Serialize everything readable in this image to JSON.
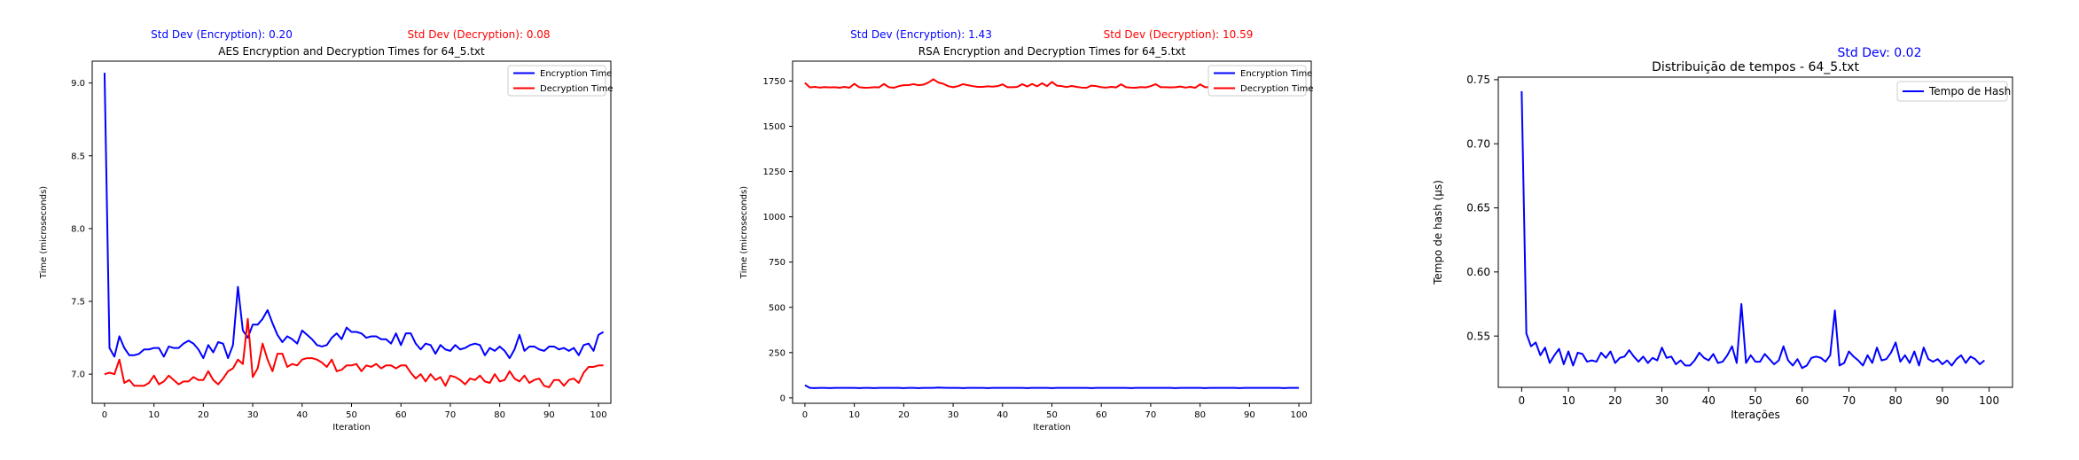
{
  "colors": {
    "blue": "#0000ff",
    "red": "#ff0000",
    "axis": "#000000"
  },
  "chart_data": [
    {
      "type": "line",
      "title": "AES Encryption and Decryption Times for 64_5.txt",
      "xlabel": "Iteration",
      "ylabel": "Time (microseconds)",
      "xlim": [
        -2.5,
        102.5
      ],
      "ylim": [
        6.8,
        9.15
      ],
      "xticks": [
        0,
        10,
        20,
        30,
        40,
        50,
        60,
        70,
        80,
        90,
        100
      ],
      "yticks": [
        7.0,
        7.5,
        8.0,
        8.5,
        9.0
      ],
      "ytick_labels": [
        "7.0",
        "7.5",
        "8.0",
        "8.5",
        "9.0"
      ],
      "legend_position": "upper right",
      "annotations": [
        {
          "text": "Std Dev (Encryption): 0.20",
          "color": "blue"
        },
        {
          "text": "Std Dev (Decryption): 0.08",
          "color": "red"
        }
      ],
      "series": [
        {
          "name": "Encryption Time",
          "color": "blue",
          "values": [
            9.07,
            7.18,
            7.12,
            7.26,
            7.18,
            7.13,
            7.13,
            7.14,
            7.17,
            7.17,
            7.18,
            7.18,
            7.12,
            7.19,
            7.18,
            7.18,
            7.21,
            7.23,
            7.21,
            7.17,
            7.11,
            7.2,
            7.15,
            7.22,
            7.21,
            7.11,
            7.2,
            7.6,
            7.3,
            7.25,
            7.34,
            7.34,
            7.38,
            7.44,
            7.35,
            7.27,
            7.22,
            7.26,
            7.24,
            7.21,
            7.3,
            7.27,
            7.24,
            7.2,
            7.19,
            7.2,
            7.25,
            7.28,
            7.24,
            7.32,
            7.29,
            7.29,
            7.28,
            7.25,
            7.26,
            7.26,
            7.24,
            7.24,
            7.21,
            7.28,
            7.2,
            7.28,
            7.28,
            7.21,
            7.17,
            7.21,
            7.2,
            7.14,
            7.2,
            7.17,
            7.16,
            7.2,
            7.17,
            7.18,
            7.2,
            7.21,
            7.2,
            7.13,
            7.18,
            7.16,
            7.19,
            7.16,
            7.11,
            7.17,
            7.27,
            7.16,
            7.19,
            7.19,
            7.17,
            7.16,
            7.19,
            7.19,
            7.17,
            7.18,
            7.16,
            7.18,
            7.13,
            7.2,
            7.21,
            7.16,
            7.27,
            7.29
          ]
        },
        {
          "name": "Decryption Time",
          "color": "red",
          "values": [
            7.0,
            7.01,
            7.0,
            7.1,
            6.94,
            6.96,
            6.92,
            6.92,
            6.92,
            6.94,
            6.99,
            6.93,
            6.95,
            6.99,
            6.96,
            6.93,
            6.95,
            6.95,
            6.98,
            6.96,
            6.96,
            7.02,
            6.96,
            6.93,
            6.97,
            7.02,
            7.04,
            7.1,
            7.07,
            7.38,
            6.98,
            7.04,
            7.21,
            7.1,
            7.02,
            7.14,
            7.14,
            7.05,
            7.07,
            7.06,
            7.1,
            7.11,
            7.11,
            7.1,
            7.08,
            7.05,
            7.1,
            7.02,
            7.03,
            7.06,
            7.06,
            7.07,
            7.02,
            7.06,
            7.05,
            7.07,
            7.04,
            7.06,
            7.06,
            7.04,
            7.06,
            7.06,
            7.01,
            6.97,
            7.0,
            6.95,
            7.0,
            6.96,
            6.98,
            6.92,
            6.99,
            6.98,
            6.96,
            6.93,
            6.97,
            6.96,
            6.99,
            6.95,
            6.94,
            7.0,
            6.95,
            6.96,
            7.02,
            6.97,
            6.95,
            6.99,
            6.94,
            6.96,
            6.97,
            6.92,
            6.91,
            6.96,
            6.96,
            6.92,
            6.96,
            6.97,
            6.94,
            7.01,
            7.05,
            7.05,
            7.06,
            7.06
          ]
        }
      ]
    },
    {
      "type": "line",
      "title": "RSA Encryption and Decryption Times for 64_5.txt",
      "xlabel": "Iteration",
      "ylabel": "Time (microseconds)",
      "xlim": [
        -2.5,
        102.5
      ],
      "ylim": [
        -30,
        1860
      ],
      "xticks": [
        0,
        10,
        20,
        30,
        40,
        50,
        60,
        70,
        80,
        90,
        100
      ],
      "yticks": [
        0,
        250,
        500,
        750,
        1000,
        1250,
        1500,
        1750
      ],
      "ytick_labels": [
        "0",
        "250",
        "500",
        "750",
        "1000",
        "1250",
        "1500",
        "1750"
      ],
      "legend_position": "upper right",
      "annotations": [
        {
          "text": "Std Dev (Encryption): 1.43",
          "color": "blue"
        },
        {
          "text": "Std Dev (Decryption): 10.59",
          "color": "red"
        }
      ],
      "series": [
        {
          "name": "Encryption Time",
          "color": "blue",
          "values": [
            70,
            55,
            54,
            55,
            55,
            54,
            55,
            55,
            55,
            55,
            55,
            54,
            55,
            55,
            54,
            55,
            55,
            55,
            55,
            55,
            54,
            55,
            55,
            54,
            55,
            55,
            55,
            57,
            56,
            55,
            55,
            55,
            54,
            55,
            55,
            55,
            55,
            54,
            55,
            55,
            55,
            55,
            55,
            55,
            55,
            54,
            55,
            55,
            55,
            55,
            54,
            55,
            55,
            55,
            55,
            55,
            55,
            55,
            54,
            55,
            55,
            55,
            55,
            55,
            55,
            55,
            54,
            55,
            55,
            55,
            55,
            55,
            55,
            55,
            55,
            54,
            55,
            55,
            55,
            55,
            55,
            54,
            55,
            55,
            55,
            55,
            55,
            55,
            54,
            55,
            55,
            55,
            55,
            55,
            55,
            55,
            55,
            54,
            55,
            55,
            55
          ]
        },
        {
          "name": "Decryption Time",
          "color": "red",
          "values": [
            1740,
            1715,
            1718,
            1714,
            1717,
            1715,
            1716,
            1713,
            1718,
            1713,
            1735,
            1716,
            1713,
            1714,
            1716,
            1715,
            1734,
            1716,
            1713,
            1722,
            1727,
            1728,
            1733,
            1727,
            1730,
            1742,
            1760,
            1742,
            1735,
            1722,
            1716,
            1722,
            1733,
            1727,
            1722,
            1718,
            1718,
            1721,
            1719,
            1722,
            1732,
            1716,
            1716,
            1718,
            1733,
            1720,
            1734,
            1721,
            1738,
            1722,
            1745,
            1725,
            1722,
            1717,
            1723,
            1718,
            1714,
            1713,
            1725,
            1722,
            1716,
            1714,
            1718,
            1715,
            1732,
            1716,
            1714,
            1713,
            1717,
            1715,
            1722,
            1733,
            1716,
            1716,
            1715,
            1716,
            1720,
            1714,
            1718,
            1713,
            1732,
            1716,
            1716,
            1713,
            1715,
            1714,
            1718,
            1714,
            1722,
            1713,
            1715,
            1730,
            1714,
            1716,
            1713,
            1718,
            1717,
            1716,
            1715,
            1718,
            1716
          ]
        }
      ]
    },
    {
      "type": "line",
      "title": "Distribuição de tempos - 64_5.txt",
      "xlabel": "Iterações",
      "ylabel": "Tempo de hash (µs)",
      "xlim": [
        -5,
        105
      ],
      "ylim": [
        0.51,
        0.752
      ],
      "xticks": [
        0,
        10,
        20,
        30,
        40,
        50,
        60,
        70,
        80,
        90,
        100
      ],
      "yticks": [
        0.55,
        0.6,
        0.65,
        0.7,
        0.75
      ],
      "ytick_labels": [
        "0.55",
        "0.60",
        "0.65",
        "0.70",
        "0.75"
      ],
      "legend_position": "upper right",
      "annotations": [
        {
          "text": "Std Dev: 0.02",
          "color": "blue"
        }
      ],
      "series": [
        {
          "name": "Tempo de Hash",
          "color": "blue",
          "values": [
            0.741,
            0.552,
            0.542,
            0.545,
            0.535,
            0.541,
            0.529,
            0.535,
            0.54,
            0.528,
            0.538,
            0.527,
            0.537,
            0.536,
            0.53,
            0.531,
            0.53,
            0.537,
            0.533,
            0.538,
            0.529,
            0.533,
            0.534,
            0.539,
            0.534,
            0.53,
            0.534,
            0.529,
            0.533,
            0.531,
            0.541,
            0.533,
            0.534,
            0.528,
            0.531,
            0.527,
            0.527,
            0.531,
            0.537,
            0.533,
            0.531,
            0.536,
            0.529,
            0.53,
            0.535,
            0.542,
            0.529,
            0.575,
            0.529,
            0.535,
            0.53,
            0.53,
            0.536,
            0.532,
            0.528,
            0.531,
            0.542,
            0.531,
            0.527,
            0.532,
            0.525,
            0.527,
            0.533,
            0.534,
            0.533,
            0.53,
            0.535,
            0.57,
            0.527,
            0.529,
            0.538,
            0.534,
            0.531,
            0.527,
            0.535,
            0.529,
            0.541,
            0.531,
            0.532,
            0.537,
            0.545,
            0.53,
            0.535,
            0.529,
            0.538,
            0.527,
            0.541,
            0.532,
            0.53,
            0.532,
            0.528,
            0.531,
            0.527,
            0.532,
            0.535,
            0.529,
            0.534,
            0.532,
            0.528,
            0.531
          ]
        }
      ]
    }
  ]
}
